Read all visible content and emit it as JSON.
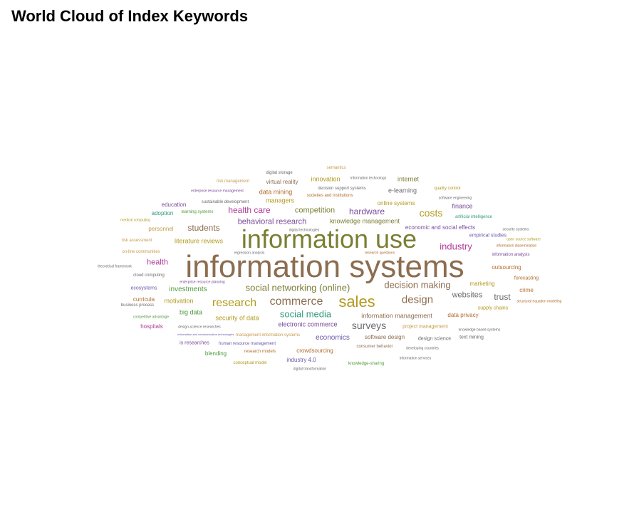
{
  "title": "World Cloud of Index Keywords",
  "palette": {
    "brown": "#8c6d4f",
    "olive": "#7a7e33",
    "gold": "#b19a1e",
    "sand": "#c79a4a",
    "magenta": "#b03a98",
    "purple": "#7a4a9a",
    "green": "#4f9a3a",
    "teal": "#2f9a7a",
    "gray": "#6a6a6a",
    "rust": "#b06a2a",
    "violet": "#6a58a8"
  },
  "words": [
    {
      "text": "information systems",
      "size": 44,
      "color": "brown"
    },
    {
      "text": "information use",
      "size": 36,
      "color": "olive"
    },
    {
      "text": "sales",
      "size": 22,
      "color": "gold"
    },
    {
      "text": "design",
      "size": 15,
      "color": "brown"
    },
    {
      "text": "commerce",
      "size": 16,
      "color": "brown"
    },
    {
      "text": "research",
      "size": 16,
      "color": "gold"
    },
    {
      "text": "surveys",
      "size": 14,
      "color": "gray"
    },
    {
      "text": "social media",
      "size": 13,
      "color": "teal"
    },
    {
      "text": "social networking (online)",
      "size": 13,
      "color": "olive"
    },
    {
      "text": "costs",
      "size": 14,
      "color": "gold"
    },
    {
      "text": "industry",
      "size": 13,
      "color": "magenta"
    },
    {
      "text": "decision making",
      "size": 13,
      "color": "brown"
    },
    {
      "text": "health care",
      "size": 12,
      "color": "magenta"
    },
    {
      "text": "hardware",
      "size": 12,
      "color": "purple"
    },
    {
      "text": "students",
      "size": 12,
      "color": "brown"
    },
    {
      "text": "competition",
      "size": 11,
      "color": "olive"
    },
    {
      "text": "behavioral research",
      "size": 11,
      "color": "purple"
    },
    {
      "text": "websites",
      "size": 11,
      "color": "gray"
    },
    {
      "text": "trust",
      "size": 12,
      "color": "gray"
    },
    {
      "text": "health",
      "size": 11,
      "color": "magenta"
    },
    {
      "text": "investments",
      "size": 10,
      "color": "green"
    },
    {
      "text": "economics",
      "size": 10,
      "color": "violet"
    },
    {
      "text": "knowledge management",
      "size": 9,
      "color": "olive"
    },
    {
      "text": "information management",
      "size": 9,
      "color": "brown"
    },
    {
      "text": "literature reviews",
      "size": 9,
      "color": "gold"
    },
    {
      "text": "security of data",
      "size": 9,
      "color": "gold"
    },
    {
      "text": "electronic commerce",
      "size": 9,
      "color": "purple"
    },
    {
      "text": "economic and social effects",
      "size": 8,
      "color": "purple"
    },
    {
      "text": "finance",
      "size": 9,
      "color": "purple"
    },
    {
      "text": "data privacy",
      "size": 8,
      "color": "rust"
    },
    {
      "text": "marketing",
      "size": 8,
      "color": "gold"
    },
    {
      "text": "outsourcing",
      "size": 8,
      "color": "rust"
    },
    {
      "text": "crime",
      "size": 8,
      "color": "rust"
    },
    {
      "text": "managers",
      "size": 9,
      "color": "gold"
    },
    {
      "text": "data mining",
      "size": 9,
      "color": "rust"
    },
    {
      "text": "innovation",
      "size": 9,
      "color": "gold"
    },
    {
      "text": "internet",
      "size": 9,
      "color": "olive"
    },
    {
      "text": "e-learning",
      "size": 9,
      "color": "gray"
    },
    {
      "text": "virtual reality",
      "size": 8,
      "color": "brown"
    },
    {
      "text": "motivation",
      "size": 9,
      "color": "gold"
    },
    {
      "text": "big data",
      "size": 9,
      "color": "green"
    },
    {
      "text": "personnel",
      "size": 8,
      "color": "sand"
    },
    {
      "text": "education",
      "size": 8,
      "color": "purple"
    },
    {
      "text": "adoption",
      "size": 8,
      "color": "teal"
    },
    {
      "text": "online systems",
      "size": 8,
      "color": "gold"
    },
    {
      "text": "software design",
      "size": 8,
      "color": "brown"
    },
    {
      "text": "crowdsourcing",
      "size": 8,
      "color": "rust"
    },
    {
      "text": "blending",
      "size": 8,
      "color": "green"
    },
    {
      "text": "industry 4.0",
      "size": 8,
      "color": "violet"
    },
    {
      "text": "curricula",
      "size": 8,
      "color": "rust"
    },
    {
      "text": "hospitals",
      "size": 8,
      "color": "magenta"
    },
    {
      "text": "empirical studies",
      "size": 7,
      "color": "violet"
    },
    {
      "text": "project management",
      "size": 7,
      "color": "sand"
    },
    {
      "text": "design science",
      "size": 7,
      "color": "gray"
    },
    {
      "text": "text mining",
      "size": 7,
      "color": "gray"
    },
    {
      "text": "supply chains",
      "size": 7,
      "color": "gold"
    },
    {
      "text": "forecasting",
      "size": 7,
      "color": "rust"
    },
    {
      "text": "information analysis",
      "size": 6,
      "color": "purple"
    },
    {
      "text": "consumer behavior",
      "size": 6,
      "color": "brown"
    },
    {
      "text": "is researches",
      "size": 7,
      "color": "purple"
    },
    {
      "text": "research models",
      "size": 6,
      "color": "rust"
    },
    {
      "text": "conceptual model",
      "size": 6,
      "color": "gold"
    },
    {
      "text": "knowledge-sharing",
      "size": 6,
      "color": "green"
    },
    {
      "text": "human resource management",
      "size": 6,
      "color": "violet"
    },
    {
      "text": "management information systems",
      "size": 6,
      "color": "sand"
    },
    {
      "text": "ecosystems",
      "size": 7,
      "color": "violet"
    },
    {
      "text": "business process",
      "size": 6,
      "color": "gray"
    },
    {
      "text": "cloud computing",
      "size": 6,
      "color": "gray"
    },
    {
      "text": "risk assessment",
      "size": 6,
      "color": "sand"
    },
    {
      "text": "on-line communities",
      "size": 6,
      "color": "sand"
    },
    {
      "text": "risk management",
      "size": 6,
      "color": "sand"
    },
    {
      "text": "sustainable development",
      "size": 6,
      "color": "gray"
    },
    {
      "text": "learning systems",
      "size": 6,
      "color": "green"
    },
    {
      "text": "digital storage",
      "size": 6,
      "color": "gray"
    },
    {
      "text": "semantics",
      "size": 6,
      "color": "sand"
    },
    {
      "text": "decision support systems",
      "size": 6,
      "color": "gray"
    },
    {
      "text": "societies and institutions",
      "size": 6,
      "color": "rust"
    },
    {
      "text": "quality control",
      "size": 6,
      "color": "gold"
    },
    {
      "text": "software engineering",
      "size": 5,
      "color": "gray"
    },
    {
      "text": "artificial intelligence",
      "size": 6,
      "color": "teal"
    },
    {
      "text": "information technology",
      "size": 5,
      "color": "gray"
    },
    {
      "text": "enterprise resource management",
      "size": 5,
      "color": "purple"
    },
    {
      "text": "medical computing",
      "size": 5,
      "color": "gold"
    },
    {
      "text": "digital technologies",
      "size": 5,
      "color": "gray"
    },
    {
      "text": "regression analysis",
      "size": 5,
      "color": "gray"
    },
    {
      "text": "research questions",
      "size": 5,
      "color": "rust"
    },
    {
      "text": "security systems",
      "size": 5,
      "color": "gray"
    },
    {
      "text": "open source software",
      "size": 5,
      "color": "gold"
    },
    {
      "text": "information dissemination",
      "size": 5,
      "color": "rust"
    },
    {
      "text": "theoretical framework",
      "size": 5,
      "color": "gray"
    },
    {
      "text": "enterprise resource planning",
      "size": 5,
      "color": "purple"
    },
    {
      "text": "structural equation modeling",
      "size": 5,
      "color": "rust"
    },
    {
      "text": "competitive advantage",
      "size": 5,
      "color": "green"
    },
    {
      "text": "design-science researches",
      "size": 5,
      "color": "gray"
    },
    {
      "text": "information and communication technologies",
      "size": 4,
      "color": "violet"
    },
    {
      "text": "knowledge based systems",
      "size": 5,
      "color": "gray"
    },
    {
      "text": "developing countries",
      "size": 5,
      "color": "gray"
    },
    {
      "text": "information services",
      "size": 5,
      "color": "gray"
    },
    {
      "text": "digital transformation",
      "size": 5,
      "color": "gray"
    }
  ]
}
